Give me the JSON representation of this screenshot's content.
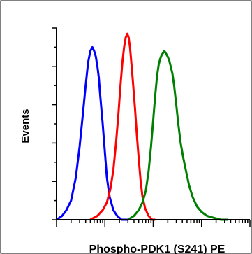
{
  "chart_data": {
    "type": "line",
    "xlabel": "Phospho-PDK1 (S241) PE",
    "ylabel": "Events",
    "x_scale": "log",
    "xlim": [
      1,
      10000
    ],
    "ylim": [
      0,
      100
    ],
    "grid": false,
    "legend": "none",
    "series": [
      {
        "color": "#0000ff",
        "points": [
          [
            1,
            0
          ],
          [
            1.3,
            2
          ],
          [
            1.6,
            5
          ],
          [
            2,
            10
          ],
          [
            2.5,
            22
          ],
          [
            3,
            38
          ],
          [
            3.5,
            55
          ],
          [
            4,
            70
          ],
          [
            4.5,
            82
          ],
          [
            5,
            88
          ],
          [
            5.5,
            90
          ],
          [
            6,
            88
          ],
          [
            6.5,
            85
          ],
          [
            7,
            80
          ],
          [
            7.5,
            74
          ],
          [
            8,
            65
          ],
          [
            9,
            50
          ],
          [
            10,
            35
          ],
          [
            11,
            22
          ],
          [
            12.5,
            12
          ],
          [
            15,
            5
          ],
          [
            18,
            2
          ],
          [
            22,
            0
          ],
          [
            30,
            0
          ]
        ]
      },
      {
        "color": "#ff0000",
        "points": [
          [
            5,
            0
          ],
          [
            7,
            2
          ],
          [
            9,
            5
          ],
          [
            11,
            9
          ],
          [
            13,
            16
          ],
          [
            15,
            26
          ],
          [
            17,
            40
          ],
          [
            19,
            55
          ],
          [
            21,
            70
          ],
          [
            23,
            82
          ],
          [
            25,
            90
          ],
          [
            27,
            95
          ],
          [
            29,
            97
          ],
          [
            31,
            95
          ],
          [
            33,
            90
          ],
          [
            35,
            83
          ],
          [
            38,
            72
          ],
          [
            42,
            58
          ],
          [
            46,
            44
          ],
          [
            50,
            32
          ],
          [
            55,
            20
          ],
          [
            60,
            12
          ],
          [
            68,
            6
          ],
          [
            80,
            2
          ],
          [
            95,
            0
          ],
          [
            110,
            0
          ]
        ]
      },
      {
        "color": "#008000",
        "points": [
          [
            30,
            0
          ],
          [
            40,
            2
          ],
          [
            50,
            5
          ],
          [
            60,
            9
          ],
          [
            70,
            15
          ],
          [
            80,
            25
          ],
          [
            90,
            38
          ],
          [
            100,
            52
          ],
          [
            110,
            65
          ],
          [
            120,
            75
          ],
          [
            130,
            81
          ],
          [
            140,
            84
          ],
          [
            150,
            86
          ],
          [
            160,
            87
          ],
          [
            170,
            88
          ],
          [
            180,
            87
          ],
          [
            190,
            86
          ],
          [
            200,
            85
          ],
          [
            215,
            83
          ],
          [
            230,
            80
          ],
          [
            250,
            76
          ],
          [
            270,
            70
          ],
          [
            300,
            60
          ],
          [
            330,
            50
          ],
          [
            370,
            40
          ],
          [
            420,
            32
          ],
          [
            480,
            25
          ],
          [
            550,
            18
          ],
          [
            650,
            12
          ],
          [
            800,
            7
          ],
          [
            1000,
            4
          ],
          [
            1300,
            2
          ],
          [
            1800,
            1
          ],
          [
            2500,
            0
          ],
          [
            3500,
            0
          ]
        ]
      }
    ]
  }
}
